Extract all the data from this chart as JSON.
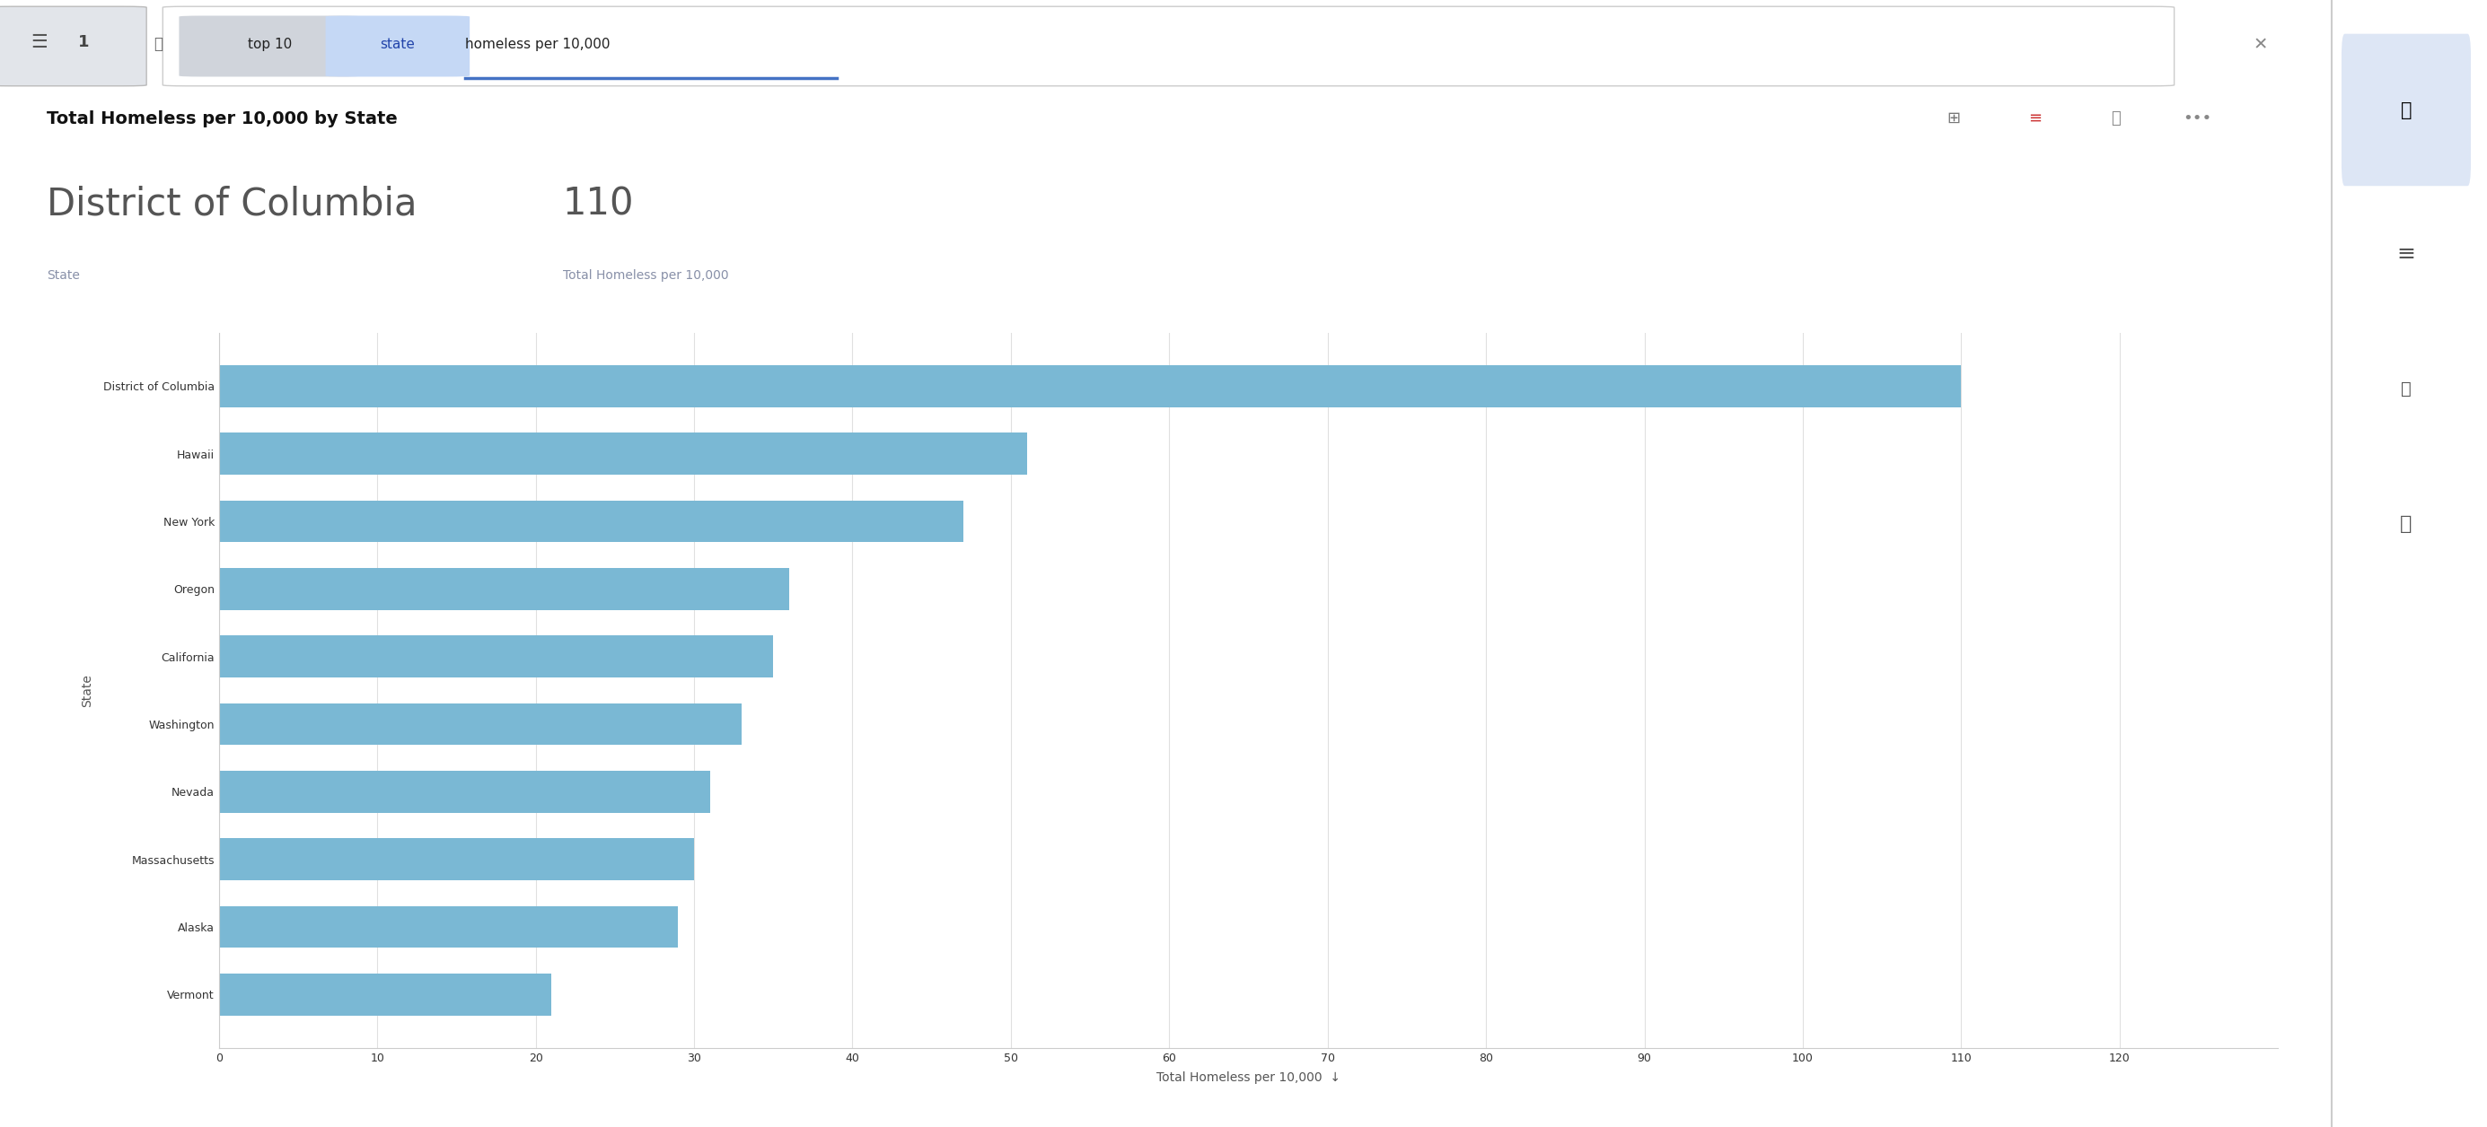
{
  "title": "Total Homeless per 10,000 by State",
  "highlight_state": "District of Columbia",
  "highlight_value": "110",
  "highlight_label1": "State",
  "highlight_label2": "Total Homeless per 10,000",
  "ylabel": "State",
  "xlabel": "Total Homeless per 10,000",
  "states": [
    "District of Columbia",
    "Hawaii",
    "New York",
    "Oregon",
    "California",
    "Washington",
    "Nevada",
    "Massachusetts",
    "Alaska",
    "Vermont"
  ],
  "values": [
    110,
    51,
    47,
    36,
    35,
    33,
    31,
    30,
    29,
    21
  ],
  "bar_color": "#7ab8d4",
  "background_color": "#ffffff",
  "panel_bg": "#f0f2f5",
  "xlim": [
    0,
    130
  ],
  "xticks": [
    0,
    10,
    20,
    30,
    40,
    50,
    60,
    70,
    80,
    90,
    100,
    110,
    120
  ],
  "grid_color": "#e0e0e0",
  "title_fontsize": 14,
  "axis_label_fontsize": 10,
  "tick_fontsize": 9,
  "highlight_value_fontsize": 30,
  "highlight_state_fontsize": 30,
  "highlight_sublabel_fontsize": 10,
  "highlight_sublabel_color": "#8890a8"
}
